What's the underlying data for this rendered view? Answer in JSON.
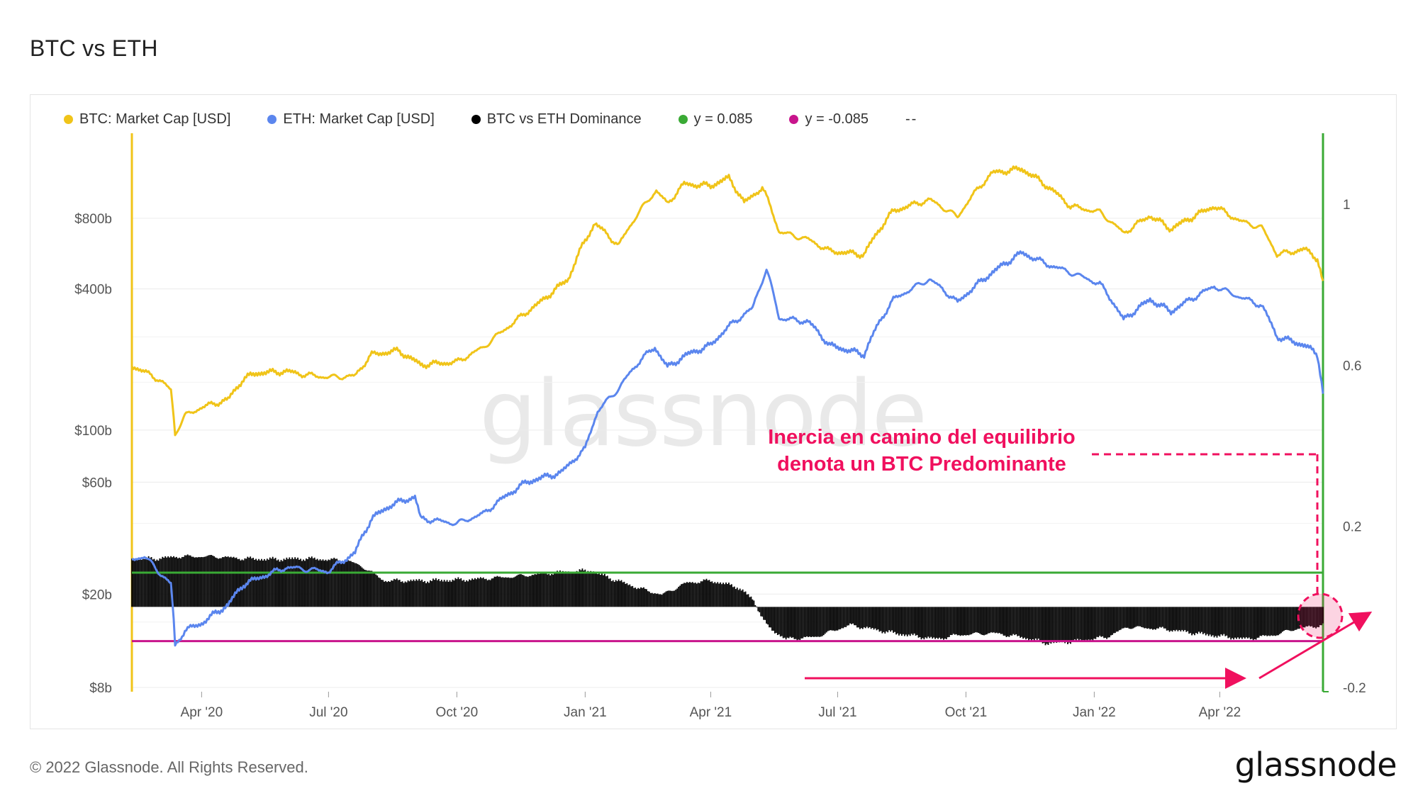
{
  "page": {
    "title": "BTC vs ETH",
    "copyright": "© 2022 Glassnode. All Rights Reserved.",
    "logo_text": "glassnode",
    "watermark": "glassnode"
  },
  "legend": [
    {
      "label": "BTC: Market Cap [USD]",
      "color": "#f0c419"
    },
    {
      "label": "ETH: Market Cap [USD]",
      "color": "#5b86ee"
    },
    {
      "label": "BTC vs ETH Dominance",
      "color": "#000000"
    },
    {
      "label": "y = 0.085",
      "color": "#3aaa35"
    },
    {
      "label": "y = -0.085",
      "color": "#c8148c"
    },
    {
      "label": "--",
      "color": ""
    }
  ],
  "annotation": {
    "line1": "Inercia en camino del equilibrio",
    "line2": "denota un BTC Predominante",
    "color": "#f0105e"
  },
  "chart_data": {
    "type": "line",
    "x_axis": {
      "ticks": [
        "Apr '20",
        "Jul '20",
        "Oct '20",
        "Jan '21",
        "Apr '21",
        "Jul '21",
        "Oct '21",
        "Jan '22",
        "Apr '22"
      ],
      "range": [
        "2020-02-11",
        "2022-06-14"
      ]
    },
    "y_left": {
      "scale": "log",
      "ticks": [
        "$8b",
        "$20b",
        "$60b",
        "$100b",
        "$400b",
        "$800b"
      ],
      "tick_values": [
        8,
        20,
        60,
        100,
        400,
        800
      ],
      "unit": "billion USD"
    },
    "y_right": {
      "scale": "linear",
      "ticks": [
        "-0.2",
        "0.2",
        "0.6",
        "1"
      ],
      "tick_values": [
        -0.2,
        0.2,
        0.6,
        1.0
      ]
    },
    "reference_lines": [
      {
        "label": "y = 0.085",
        "y": 0.085,
        "color": "#3aaa35"
      },
      {
        "label": "y = -0.085",
        "y": -0.085,
        "color": "#c8148c"
      }
    ],
    "series": [
      {
        "name": "BTC: Market Cap [USD]",
        "color": "#f0c419",
        "axis": "left",
        "points": [
          [
            "2020-02-11",
            188
          ],
          [
            "2020-03-01",
            165
          ],
          [
            "2020-03-10",
            148
          ],
          [
            "2020-03-13",
            96
          ],
          [
            "2020-03-20",
            115
          ],
          [
            "2020-04-01",
            125
          ],
          [
            "2020-04-20",
            135
          ],
          [
            "2020-05-01",
            165
          ],
          [
            "2020-05-10",
            175
          ],
          [
            "2020-06-01",
            178
          ],
          [
            "2020-06-15",
            172
          ],
          [
            "2020-07-01",
            168
          ],
          [
            "2020-07-20",
            170
          ],
          [
            "2020-08-01",
            210
          ],
          [
            "2020-08-20",
            218
          ],
          [
            "2020-09-05",
            190
          ],
          [
            "2020-10-01",
            195
          ],
          [
            "2020-10-20",
            225
          ],
          [
            "2020-11-10",
            285
          ],
          [
            "2020-12-01",
            355
          ],
          [
            "2020-12-20",
            440
          ],
          [
            "2021-01-08",
            760
          ],
          [
            "2021-01-25",
            610
          ],
          [
            "2021-02-10",
            870
          ],
          [
            "2021-02-21",
            1050
          ],
          [
            "2021-03-01",
            920
          ],
          [
            "2021-03-13",
            1120
          ],
          [
            "2021-04-01",
            1100
          ],
          [
            "2021-04-14",
            1190
          ],
          [
            "2021-04-25",
            930
          ],
          [
            "2021-05-08",
            1080
          ],
          [
            "2021-05-20",
            700
          ],
          [
            "2021-06-10",
            650
          ],
          [
            "2021-06-25",
            580
          ],
          [
            "2021-07-20",
            560
          ],
          [
            "2021-08-10",
            860
          ],
          [
            "2021-09-05",
            960
          ],
          [
            "2021-09-25",
            810
          ],
          [
            "2021-10-20",
            1250
          ],
          [
            "2021-11-10",
            1300
          ],
          [
            "2021-11-28",
            1100
          ],
          [
            "2021-12-15",
            900
          ],
          [
            "2022-01-05",
            850
          ],
          [
            "2022-01-22",
            690
          ],
          [
            "2022-02-10",
            820
          ],
          [
            "2022-02-25",
            720
          ],
          [
            "2022-03-28",
            900
          ],
          [
            "2022-04-15",
            780
          ],
          [
            "2022-05-01",
            730
          ],
          [
            "2022-05-12",
            560
          ],
          [
            "2022-06-01",
            590
          ],
          [
            "2022-06-10",
            540
          ],
          [
            "2022-06-14",
            420
          ]
        ]
      },
      {
        "name": "ETH: Market Cap [USD]",
        "color": "#5b86ee",
        "axis": "left",
        "points": [
          [
            "2020-02-11",
            28
          ],
          [
            "2020-02-20",
            29
          ],
          [
            "2020-03-01",
            25
          ],
          [
            "2020-03-10",
            22
          ],
          [
            "2020-03-13",
            12
          ],
          [
            "2020-03-20",
            14
          ],
          [
            "2020-04-01",
            15
          ],
          [
            "2020-04-20",
            18
          ],
          [
            "2020-05-01",
            22
          ],
          [
            "2020-06-01",
            26
          ],
          [
            "2020-07-01",
            25
          ],
          [
            "2020-07-20",
            30
          ],
          [
            "2020-08-01",
            42
          ],
          [
            "2020-08-15",
            48
          ],
          [
            "2020-09-01",
            52
          ],
          [
            "2020-09-05",
            42
          ],
          [
            "2020-10-01",
            40
          ],
          [
            "2020-10-20",
            44
          ],
          [
            "2020-11-20",
            60
          ],
          [
            "2020-12-15",
            66
          ],
          [
            "2021-01-01",
            83
          ],
          [
            "2021-01-10",
            120
          ],
          [
            "2021-01-25",
            150
          ],
          [
            "2021-02-10",
            200
          ],
          [
            "2021-02-20",
            225
          ],
          [
            "2021-03-01",
            185
          ],
          [
            "2021-03-15",
            210
          ],
          [
            "2021-04-01",
            230
          ],
          [
            "2021-04-15",
            280
          ],
          [
            "2021-05-01",
            330
          ],
          [
            "2021-05-11",
            480
          ],
          [
            "2021-05-20",
            300
          ],
          [
            "2021-06-10",
            290
          ],
          [
            "2021-06-25",
            230
          ],
          [
            "2021-07-20",
            210
          ],
          [
            "2021-08-10",
            360
          ],
          [
            "2021-09-05",
            440
          ],
          [
            "2021-09-25",
            350
          ],
          [
            "2021-10-20",
            470
          ],
          [
            "2021-11-10",
            570
          ],
          [
            "2021-11-28",
            510
          ],
          [
            "2021-12-15",
            470
          ],
          [
            "2022-01-05",
            420
          ],
          [
            "2022-01-22",
            295
          ],
          [
            "2022-02-10",
            360
          ],
          [
            "2022-02-25",
            320
          ],
          [
            "2022-03-28",
            410
          ],
          [
            "2022-04-15",
            370
          ],
          [
            "2022-05-01",
            340
          ],
          [
            "2022-05-12",
            250
          ],
          [
            "2022-06-01",
            230
          ],
          [
            "2022-06-10",
            210
          ],
          [
            "2022-06-14",
            145
          ]
        ]
      },
      {
        "name": "BTC vs ETH Dominance",
        "color": "#000000",
        "axis": "right",
        "type": "bar",
        "points": [
          [
            "2020-02-11",
            0.12
          ],
          [
            "2020-03-01",
            0.12
          ],
          [
            "2020-03-15",
            0.125
          ],
          [
            "2020-04-10",
            0.125
          ],
          [
            "2020-05-01",
            0.12
          ],
          [
            "2020-05-20",
            0.118
          ],
          [
            "2020-06-15",
            0.12
          ],
          [
            "2020-07-15",
            0.115
          ],
          [
            "2020-07-28",
            0.095
          ],
          [
            "2020-08-10",
            0.065
          ],
          [
            "2020-09-10",
            0.065
          ],
          [
            "2020-10-10",
            0.068
          ],
          [
            "2020-11-10",
            0.075
          ],
          [
            "2020-12-10",
            0.085
          ],
          [
            "2021-01-05",
            0.09
          ],
          [
            "2021-01-20",
            0.07
          ],
          [
            "2021-02-10",
            0.045
          ],
          [
            "2021-02-25",
            0.03
          ],
          [
            "2021-03-15",
            0.06
          ],
          [
            "2021-04-01",
            0.065
          ],
          [
            "2021-04-20",
            0.05
          ],
          [
            "2021-05-01",
            0.02
          ],
          [
            "2021-05-12",
            -0.05
          ],
          [
            "2021-05-25",
            -0.08
          ],
          [
            "2021-06-15",
            -0.075
          ],
          [
            "2021-07-10",
            -0.045
          ],
          [
            "2021-08-10",
            -0.065
          ],
          [
            "2021-09-10",
            -0.08
          ],
          [
            "2021-09-25",
            -0.07
          ],
          [
            "2021-10-20",
            -0.065
          ],
          [
            "2021-11-10",
            -0.075
          ],
          [
            "2021-11-28",
            -0.09
          ],
          [
            "2021-12-20",
            -0.085
          ],
          [
            "2022-01-10",
            -0.075
          ],
          [
            "2022-01-25",
            -0.05
          ],
          [
            "2022-02-20",
            -0.055
          ],
          [
            "2022-03-20",
            -0.068
          ],
          [
            "2022-04-20",
            -0.08
          ],
          [
            "2022-05-10",
            -0.07
          ],
          [
            "2022-05-25",
            -0.055
          ],
          [
            "2022-06-05",
            -0.05
          ],
          [
            "2022-06-14",
            -0.045
          ]
        ]
      }
    ]
  }
}
